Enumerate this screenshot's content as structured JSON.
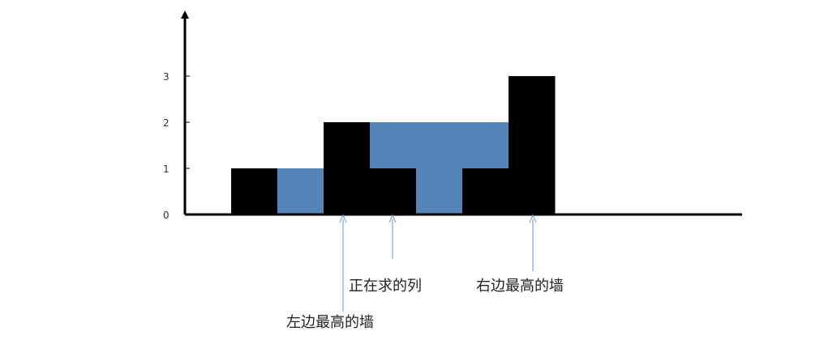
{
  "diagram": {
    "y_ticks": [
      "0",
      "1",
      "2",
      "3"
    ],
    "columns": [
      {
        "height": 0,
        "water": 0
      },
      {
        "height": 1,
        "water": 0
      },
      {
        "height": 0,
        "water": 1
      },
      {
        "height": 2,
        "water": 0
      },
      {
        "height": 1,
        "water": 1
      },
      {
        "height": 0,
        "water": 2
      },
      {
        "height": 1,
        "water": 1
      },
      {
        "height": 3,
        "water": 0
      }
    ],
    "colors": {
      "wall": "#000000",
      "water": "#5584b8",
      "axis": "#000000",
      "arrow": "#7fa7d6"
    },
    "annotations": {
      "current_column": {
        "text": "正在求的列",
        "column": 4
      },
      "left_max_wall": {
        "text": "左边最高的墙",
        "column": 3
      },
      "right_max_wall": {
        "text": "右边最高的墙",
        "column": 7
      }
    }
  }
}
